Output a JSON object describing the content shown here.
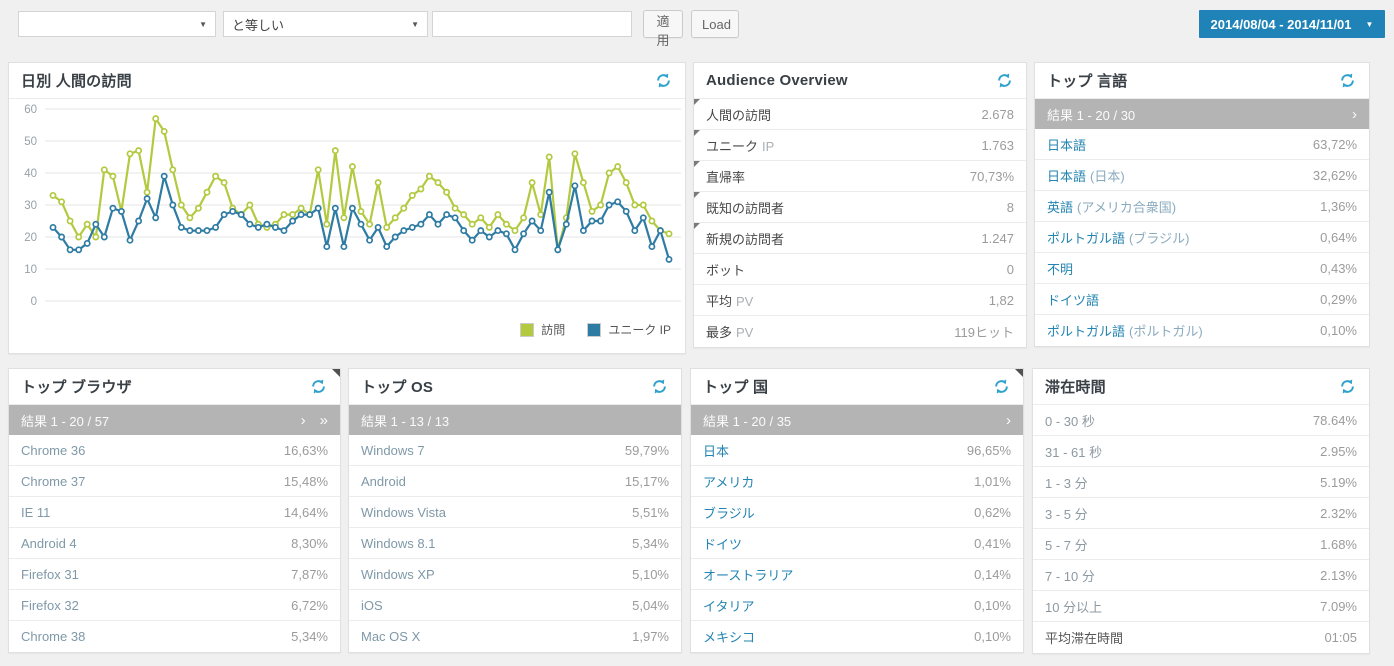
{
  "topbar": {
    "filter_field_value": "",
    "operator_value": "と等しい",
    "filter_input_value": "",
    "apply_label": "適用",
    "load_label": "Load",
    "date_range": "2014/08/04 - 2014/11/01"
  },
  "icons": {
    "caret_down": "▼"
  },
  "chart_panel": {
    "title": "日別 人間の訪問",
    "legend": [
      {
        "label": "訪問",
        "color": "#b3c93f"
      },
      {
        "label": "ユニーク IP",
        "color": "#2e7ba3"
      }
    ]
  },
  "chart_data": {
    "type": "line",
    "title": "日別 人間の訪問",
    "x_range": [
      "2014/08/04",
      "2014/11/01"
    ],
    "ylim": [
      0,
      60
    ],
    "yticks": [
      0,
      10,
      20,
      30,
      40,
      50,
      60
    ],
    "grid": true,
    "legend_position": "bottom-right",
    "series": [
      {
        "name": "訪問",
        "color": "#b3c93f",
        "values": [
          33,
          31,
          25,
          20,
          24,
          20,
          41,
          39,
          28,
          46,
          47,
          34,
          57,
          53,
          41,
          30,
          26,
          29,
          34,
          39,
          37,
          29,
          27,
          30,
          24,
          23,
          24,
          27,
          27,
          29,
          27,
          41,
          24,
          47,
          26,
          42,
          28,
          24,
          37,
          23,
          26,
          29,
          33,
          35,
          39,
          37,
          34,
          29,
          27,
          24,
          26,
          23,
          27,
          24,
          22,
          26,
          37,
          27,
          45,
          16,
          26,
          46,
          37,
          28,
          30,
          40,
          42,
          37,
          30,
          30,
          25,
          22,
          21
        ]
      },
      {
        "name": "ユニーク IP",
        "color": "#2e7ba3",
        "values": [
          23,
          20,
          16,
          16,
          18,
          24,
          20,
          29,
          28,
          19,
          25,
          32,
          26,
          39,
          30,
          23,
          22,
          22,
          22,
          23,
          27,
          28,
          27,
          24,
          23,
          24,
          23,
          22,
          25,
          27,
          27,
          29,
          17,
          29,
          17,
          29,
          24,
          19,
          23,
          17,
          20,
          22,
          23,
          24,
          27,
          24,
          27,
          26,
          22,
          19,
          22,
          20,
          22,
          21,
          16,
          21,
          25,
          22,
          34,
          16,
          24,
          36,
          22,
          25,
          25,
          30,
          31,
          28,
          22,
          26,
          17,
          22,
          13
        ]
      }
    ]
  },
  "audience": {
    "title": "Audience Overview",
    "rows": [
      {
        "label": "人間の訪問",
        "sub": "",
        "value": "2.678",
        "notch": true
      },
      {
        "label": "ユニーク",
        "sub": "IP",
        "value": "1.763",
        "notch": true
      },
      {
        "label": "直帰率",
        "sub": "",
        "value": "70,73%",
        "notch": true
      },
      {
        "label": "既知の訪問者",
        "sub": "",
        "value": "8",
        "notch": true
      },
      {
        "label": "新規の訪問者",
        "sub": "",
        "value": "1.247",
        "notch": true
      },
      {
        "label": "ボット",
        "sub": "",
        "value": "0",
        "notch": false
      },
      {
        "label": "平均",
        "sub": "PV",
        "value": "1,82",
        "notch": false
      },
      {
        "label": "最多",
        "sub": "PV",
        "value": "119ヒット",
        "notch": false
      }
    ]
  },
  "languages": {
    "title": "トップ 言語",
    "results": "結果 1 - 20 / 30",
    "arrow_next": "›",
    "rows": [
      {
        "label": "日本語",
        "sub": "",
        "value": "63,72%"
      },
      {
        "label": "日本語",
        "sub": "(日本)",
        "value": "32,62%"
      },
      {
        "label": "英語",
        "sub": "(アメリカ合衆国)",
        "value": "1,36%"
      },
      {
        "label": "ポルトガル語",
        "sub": "(ブラジル)",
        "value": "0,64%"
      },
      {
        "label": "不明",
        "sub": "",
        "value": "0,43%"
      },
      {
        "label": "ドイツ語",
        "sub": "",
        "value": "0,29%"
      },
      {
        "label": "ポルトガル語",
        "sub": "(ポルトガル)",
        "value": "0,10%"
      }
    ]
  },
  "browsers": {
    "title": "トップ ブラウザ",
    "results": "結果 1 - 20 / 57",
    "arrow_next": "›",
    "arrow_last": "»",
    "rows": [
      {
        "label": "Chrome 36",
        "value": "16,63%"
      },
      {
        "label": "Chrome 37",
        "value": "15,48%"
      },
      {
        "label": "IE 11",
        "value": "14,64%"
      },
      {
        "label": "Android 4",
        "value": "8,30%"
      },
      {
        "label": "Firefox 31",
        "value": "7,87%"
      },
      {
        "label": "Firefox 32",
        "value": "6,72%"
      },
      {
        "label": "Chrome 38",
        "value": "5,34%"
      }
    ]
  },
  "os": {
    "title": "トップ OS",
    "results": "結果 1 - 13 / 13",
    "rows": [
      {
        "label": "Windows 7",
        "value": "59,79%"
      },
      {
        "label": "Android",
        "value": "15,17%"
      },
      {
        "label": "Windows Vista",
        "value": "5,51%"
      },
      {
        "label": "Windows 8.1",
        "value": "5,34%"
      },
      {
        "label": "Windows XP",
        "value": "5,10%"
      },
      {
        "label": "iOS",
        "value": "5,04%"
      },
      {
        "label": "Mac OS X",
        "value": "1,97%"
      }
    ]
  },
  "countries": {
    "title": "トップ 国",
    "results": "結果 1 - 20 / 35",
    "arrow_next": "›",
    "rows": [
      {
        "label": "日本",
        "value": "96,65%"
      },
      {
        "label": "アメリカ",
        "value": "1,01%"
      },
      {
        "label": "ブラジル",
        "value": "0,62%"
      },
      {
        "label": "ドイツ",
        "value": "0,41%"
      },
      {
        "label": "オーストラリア",
        "value": "0,14%"
      },
      {
        "label": "イタリア",
        "value": "0,10%"
      },
      {
        "label": "メキシコ",
        "value": "0,10%"
      }
    ]
  },
  "duration": {
    "title": "滞在時間",
    "rows": [
      {
        "label": "0 - 30 秒",
        "value": "78.64%"
      },
      {
        "label": "31 - 61 秒",
        "value": "2.95%"
      },
      {
        "label": "1 - 3 分",
        "value": "5.19%"
      },
      {
        "label": "3 - 5 分",
        "value": "2.32%"
      },
      {
        "label": "5 - 7 分",
        "value": "1.68%"
      },
      {
        "label": "7 - 10 分",
        "value": "2.13%"
      },
      {
        "label": "10 分以上",
        "value": "7.09%"
      },
      {
        "label": "平均滞在時間",
        "value": "01:05"
      }
    ]
  }
}
